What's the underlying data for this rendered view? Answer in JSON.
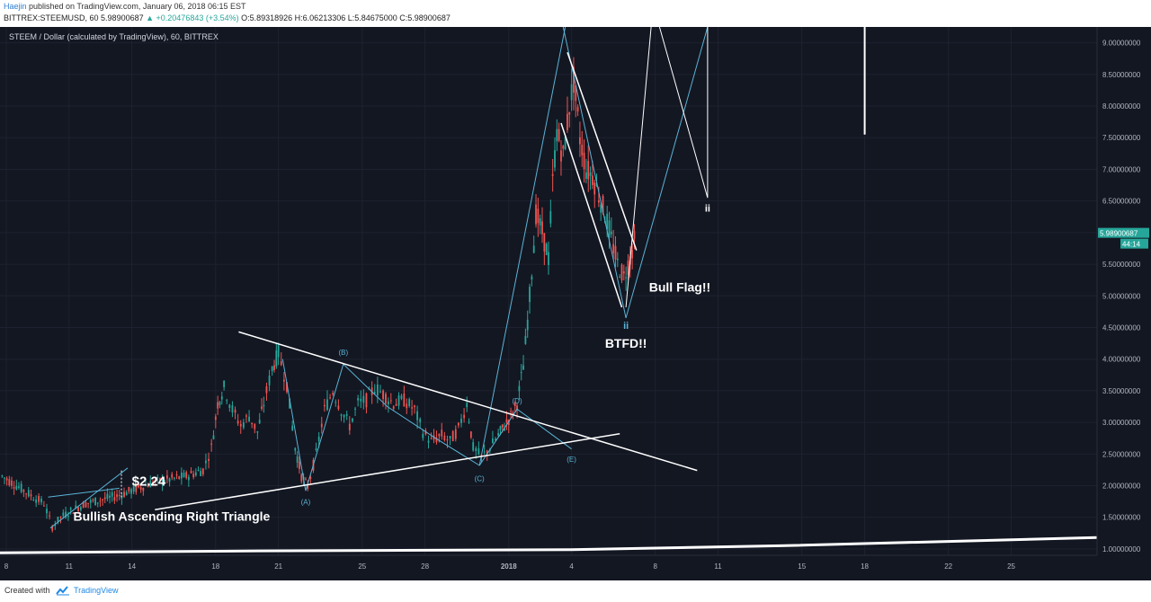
{
  "header": {
    "author": "Haejin",
    "published": " published on TradingView.com, January 06, 2018 06:15 EST",
    "ticker": "BITTREX:STEEMUSD, 60",
    "last": "5.98900687",
    "change": "▲ +0.20476843 (+3.54%)",
    "ohlc": "O:5.89318926 H:6.06213306 L:5.84675000 C:5.98900687"
  },
  "chart_title": "STEEM / Dollar (calculated by TradingView), 60, BITTREX",
  "footer": {
    "created": "Created with",
    "brand": "TradingView"
  },
  "colors": {
    "bg": "#131722",
    "up": "#26a69a",
    "down": "#ef5350",
    "annot": "#5ab4d6",
    "white": "#ffffff",
    "axis_text": "#b2b5be",
    "grid": "#1e2230"
  },
  "chart_data": {
    "type": "candlestick",
    "price_axis_ticks": [
      "9.00000000",
      "8.50000000",
      "8.00000000",
      "7.50000000",
      "7.00000000",
      "6.50000000",
      "6.00000000",
      "5.50000000",
      "5.00000000",
      "4.50000000",
      "4.00000000",
      "3.50000000",
      "3.00000000",
      "2.50000000",
      "2.00000000",
      "1.50000000",
      "1.00000000"
    ],
    "price_values": [
      9.0,
      8.5,
      8.0,
      7.5,
      7.0,
      6.5,
      6.0,
      5.5,
      5.0,
      4.5,
      4.0,
      3.5,
      3.0,
      2.5,
      2.0,
      1.5,
      1.0
    ],
    "ylim": [
      0.9,
      9.25
    ],
    "time_axis_ticks": [
      "8",
      "11",
      "14",
      "18",
      "21",
      "25",
      "28",
      "2018",
      "4",
      "8",
      "11",
      "15",
      "18",
      "22",
      "25"
    ],
    "time_values": [
      8,
      11,
      14,
      18,
      21,
      25,
      28,
      32,
      35,
      39,
      42,
      46,
      49,
      53,
      56
    ],
    "xlim": [
      7.7,
      60.1
    ],
    "last_price_label": "5.98900687",
    "countdown_label": "44:14",
    "last_price": 5.989,
    "price_path": [
      [
        7.8,
        2.15
      ],
      [
        8.6,
        1.98
      ],
      [
        9.3,
        1.82
      ],
      [
        9.8,
        1.72
      ],
      [
        10.2,
        1.35
      ],
      [
        10.6,
        1.5
      ],
      [
        11.2,
        1.62
      ],
      [
        11.8,
        1.72
      ],
      [
        12.6,
        1.78
      ],
      [
        13.4,
        1.85
      ],
      [
        14.2,
        1.95
      ],
      [
        15,
        2.05
      ],
      [
        15.8,
        2.1
      ],
      [
        16.6,
        2.15
      ],
      [
        17.4,
        2.25
      ],
      [
        17.8,
        2.6
      ],
      [
        18.1,
        3.3
      ],
      [
        18.4,
        3.55
      ],
      [
        18.8,
        3.2
      ],
      [
        19.2,
        2.95
      ],
      [
        19.6,
        3.1
      ],
      [
        20.0,
        2.85
      ],
      [
        20.3,
        3.3
      ],
      [
        20.7,
        3.85
      ],
      [
        21.0,
        4.1
      ],
      [
        21.4,
        3.6
      ],
      [
        21.8,
        2.6
      ],
      [
        22.1,
        2.15
      ],
      [
        22.4,
        1.98
      ],
      [
        22.8,
        2.5
      ],
      [
        23.2,
        3.2
      ],
      [
        23.6,
        3.5
      ],
      [
        24.0,
        3.2
      ],
      [
        24.4,
        2.95
      ],
      [
        24.8,
        3.3
      ],
      [
        25.2,
        3.35
      ],
      [
        25.6,
        3.55
      ],
      [
        26.0,
        3.45
      ],
      [
        26.5,
        3.3
      ],
      [
        27.0,
        3.35
      ],
      [
        27.5,
        3.2
      ],
      [
        27.9,
        2.85
      ],
      [
        28.3,
        2.7
      ],
      [
        28.8,
        2.8
      ],
      [
        29.2,
        2.7
      ],
      [
        29.6,
        2.9
      ],
      [
        30.0,
        3.3
      ],
      [
        30.3,
        2.6
      ],
      [
        30.7,
        2.45
      ],
      [
        31.1,
        2.6
      ],
      [
        31.5,
        2.8
      ],
      [
        31.8,
        2.95
      ],
      [
        32.1,
        3.1
      ],
      [
        32.4,
        3.3
      ],
      [
        32.7,
        3.9
      ],
      [
        32.9,
        4.6
      ],
      [
        33.1,
        5.4
      ],
      [
        33.3,
        6.3
      ],
      [
        33.6,
        6.0
      ],
      [
        33.9,
        5.6
      ],
      [
        34.1,
        6.8
      ],
      [
        34.3,
        7.6
      ],
      [
        34.6,
        7.2
      ],
      [
        34.9,
        8.0
      ],
      [
        35.1,
        8.4
      ],
      [
        35.4,
        7.5
      ],
      [
        35.7,
        7.0
      ],
      [
        36.0,
        6.9
      ],
      [
        36.3,
        6.6
      ],
      [
        36.6,
        6.3
      ],
      [
        36.9,
        5.9
      ],
      [
        37.2,
        5.5
      ],
      [
        37.5,
        5.3
      ],
      [
        37.8,
        5.6
      ],
      [
        38.1,
        5.99
      ]
    ]
  },
  "annotations": {
    "price_224": "$2.24",
    "bullish_triangle": "Bullish Ascending Right Triangle",
    "bull_flag": "Bull Flag!!",
    "btfd": "BTFD!!",
    "wave_ii_cyan": "ii",
    "wave_ii_white": "ii",
    "wave_A": "(A)",
    "wave_B": "(B)",
    "wave_C": "(C)",
    "wave_D": "(D)",
    "wave_E": "(E)"
  }
}
